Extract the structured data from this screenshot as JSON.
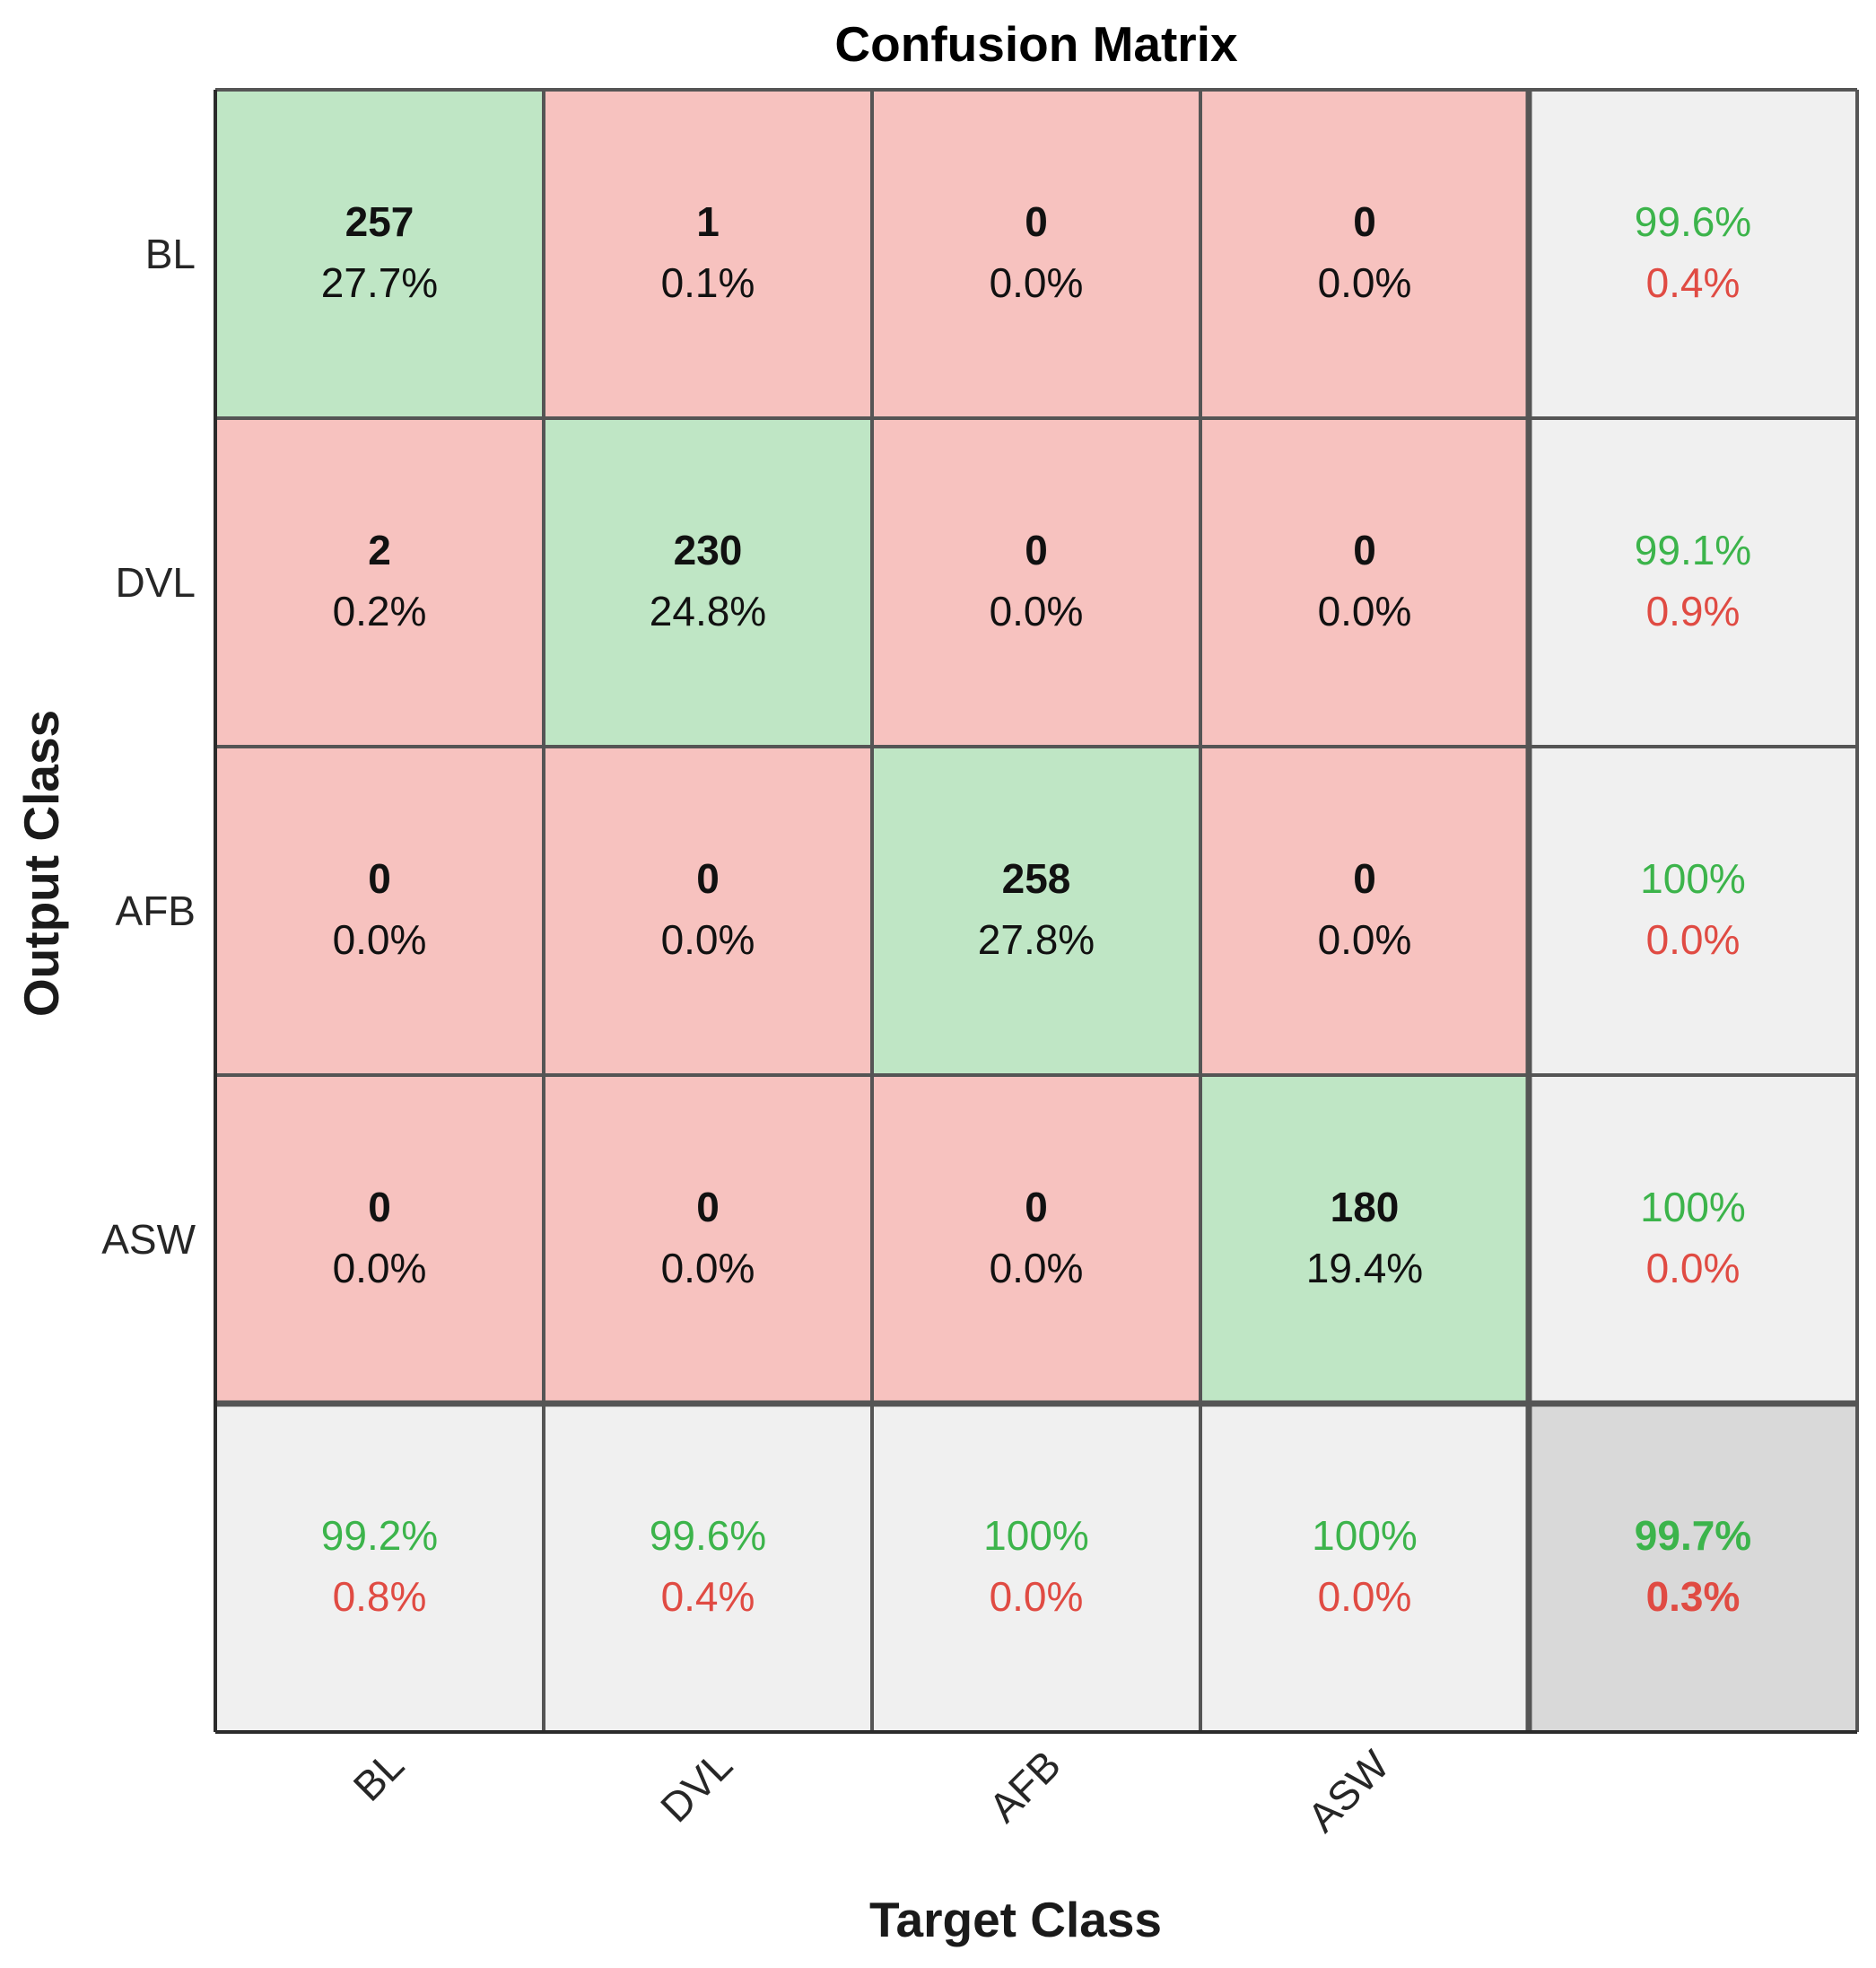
{
  "chart_data": {
    "type": "heatmap",
    "subtype": "confusion-matrix",
    "title": "Confusion Matrix",
    "xlabel": "Target Class",
    "ylabel": "Output Class",
    "classes": [
      "BL",
      "DVL",
      "AFB",
      "ASW"
    ],
    "matrix": [
      {
        "row": "BL",
        "cells": [
          {
            "count": "257",
            "pct": "27.7%"
          },
          {
            "count": "1",
            "pct": "0.1%"
          },
          {
            "count": "0",
            "pct": "0.0%"
          },
          {
            "count": "0",
            "pct": "0.0%"
          }
        ]
      },
      {
        "row": "DVL",
        "cells": [
          {
            "count": "2",
            "pct": "0.2%"
          },
          {
            "count": "230",
            "pct": "24.8%"
          },
          {
            "count": "0",
            "pct": "0.0%"
          },
          {
            "count": "0",
            "pct": "0.0%"
          }
        ]
      },
      {
        "row": "AFB",
        "cells": [
          {
            "count": "0",
            "pct": "0.0%"
          },
          {
            "count": "0",
            "pct": "0.0%"
          },
          {
            "count": "258",
            "pct": "27.8%"
          },
          {
            "count": "0",
            "pct": "0.0%"
          }
        ]
      },
      {
        "row": "ASW",
        "cells": [
          {
            "count": "0",
            "pct": "0.0%"
          },
          {
            "count": "0",
            "pct": "0.0%"
          },
          {
            "count": "0",
            "pct": "0.0%"
          },
          {
            "count": "180",
            "pct": "19.4%"
          }
        ]
      }
    ],
    "row_summary": [
      {
        "correct": "99.6%",
        "wrong": "0.4%"
      },
      {
        "correct": "99.1%",
        "wrong": "0.9%"
      },
      {
        "correct": "100%",
        "wrong": "0.0%"
      },
      {
        "correct": "100%",
        "wrong": "0.0%"
      }
    ],
    "col_summary": [
      {
        "correct": "99.2%",
        "wrong": "0.8%"
      },
      {
        "correct": "99.6%",
        "wrong": "0.4%"
      },
      {
        "correct": "100%",
        "wrong": "0.0%"
      },
      {
        "correct": "100%",
        "wrong": "0.0%"
      }
    ],
    "overall": {
      "correct": "99.7%",
      "wrong": "0.3%"
    },
    "colors": {
      "diagonal": "#bfe6c5",
      "off_diagonal": "#f7c2bf",
      "summary": "#f0f0f0",
      "overall": "#d9d9d9",
      "grid": "#555555",
      "correct_text": "#3cb44b",
      "wrong_text": "#e04b43"
    }
  }
}
